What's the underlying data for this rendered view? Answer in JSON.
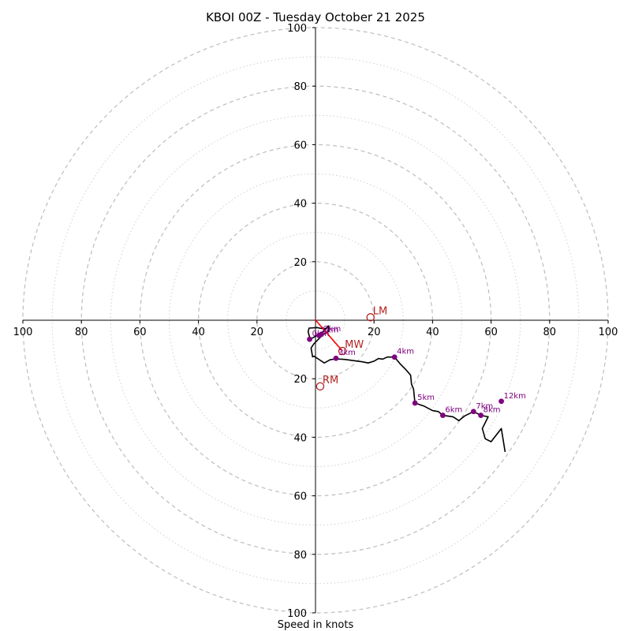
{
  "chart_data": {
    "type": "scatter",
    "subtype": "hodograph",
    "title": "KBOI 00Z - Tuesday October 21 2025",
    "xlabel": "Speed in knots",
    "units": "knots",
    "range": [
      -100,
      100
    ],
    "major_rings": [
      20,
      40,
      60,
      80,
      100
    ],
    "minor_rings": [
      10,
      30,
      50,
      70,
      90
    ],
    "x_ticks": [
      {
        "value": -100,
        "label": "100"
      },
      {
        "value": -80,
        "label": "80"
      },
      {
        "value": -60,
        "label": "60"
      },
      {
        "value": -40,
        "label": "40"
      },
      {
        "value": -20,
        "label": "20"
      },
      {
        "value": 20,
        "label": "20"
      },
      {
        "value": 40,
        "label": "40"
      },
      {
        "value": 60,
        "label": "60"
      },
      {
        "value": 80,
        "label": "80"
      },
      {
        "value": 100,
        "label": "100"
      }
    ],
    "y_ticks": [
      {
        "value": 100,
        "label": "100"
      },
      {
        "value": 80,
        "label": "80"
      },
      {
        "value": 60,
        "label": "60"
      },
      {
        "value": 40,
        "label": "40"
      },
      {
        "value": 20,
        "label": "20"
      },
      {
        "value": -20,
        "label": "20"
      },
      {
        "value": -40,
        "label": "40"
      },
      {
        "value": -60,
        "label": "60"
      },
      {
        "value": -80,
        "label": "80"
      },
      {
        "value": -100,
        "label": "100"
      }
    ],
    "hodograph_trace": [
      [
        4.5,
        -1.8
      ],
      [
        3.0,
        -3.5
      ],
      [
        2.0,
        -4.3
      ],
      [
        0.5,
        -5.2
      ],
      [
        -1.8,
        -6.5
      ],
      [
        -2.5,
        -4.0
      ],
      [
        -2.2,
        -2.7
      ],
      [
        0.5,
        -2.5
      ],
      [
        3.0,
        -3.0
      ],
      [
        4.5,
        -2.3
      ],
      [
        4.5,
        -3.8
      ],
      [
        2.5,
        -5.0
      ],
      [
        -0.5,
        -8.0
      ],
      [
        -1.5,
        -9.5
      ],
      [
        -1.0,
        -12.5
      ],
      [
        -0.5,
        -12.3
      ],
      [
        1.5,
        -13.6
      ],
      [
        3.0,
        -14.6
      ],
      [
        5.0,
        -13.5
      ],
      [
        7.0,
        -13.2
      ],
      [
        10.0,
        -13.4
      ],
      [
        13.0,
        -13.8
      ],
      [
        16.0,
        -14.2
      ],
      [
        18.0,
        -14.6
      ],
      [
        20.0,
        -14.0
      ],
      [
        21.5,
        -13.1
      ],
      [
        23.0,
        -13.3
      ],
      [
        24.5,
        -12.6
      ],
      [
        27.0,
        -12.6
      ],
      [
        29.0,
        -15.0
      ],
      [
        31.0,
        -17.0
      ],
      [
        32.5,
        -18.8
      ],
      [
        32.8,
        -21.8
      ],
      [
        33.5,
        -23.5
      ],
      [
        34.0,
        -28.3
      ],
      [
        37.0,
        -29.3
      ],
      [
        40.0,
        -30.9
      ],
      [
        42.0,
        -31.2
      ],
      [
        43.5,
        -32.5
      ],
      [
        47.0,
        -33.0
      ],
      [
        49.0,
        -34.3
      ],
      [
        51.0,
        -32.7
      ],
      [
        54.0,
        -31.2
      ],
      [
        56.5,
        -32.5
      ],
      [
        59.0,
        -33.0
      ],
      [
        58.0,
        -35.0
      ],
      [
        57.0,
        -37.0
      ],
      [
        58.0,
        -40.5
      ],
      [
        60.0,
        -41.5
      ],
      [
        63.5,
        -37.0
      ],
      [
        64.8,
        -45.0
      ]
    ],
    "height_markers": [
      {
        "label": "0km",
        "u": -2.0,
        "v": -6.5
      },
      {
        "label": "1km",
        "u": 1.2,
        "v": -5.2
      },
      {
        "label": "2km",
        "u": 2.0,
        "v": -4.8
      },
      {
        "label": "3km",
        "u": 7.0,
        "v": -13.0
      },
      {
        "label": "4km",
        "u": 27.0,
        "v": -12.6
      },
      {
        "label": "5km",
        "u": 34.0,
        "v": -28.3
      },
      {
        "label": "6km",
        "u": 43.5,
        "v": -32.5
      },
      {
        "label": "7km",
        "u": 54.0,
        "v": -31.2
      },
      {
        "label": "8km",
        "u": 56.5,
        "v": -32.5
      },
      {
        "label": "12km",
        "u": 63.5,
        "v": -27.7
      }
    ],
    "storm_motion": [
      {
        "label": "LM",
        "u": 18.8,
        "v": 1.0
      },
      {
        "label": "MW",
        "u": 9.2,
        "v": -10.5
      },
      {
        "label": "RM",
        "u": 1.6,
        "v": -22.6
      }
    ],
    "shear_vector": {
      "from": [
        -0.2,
        0.3
      ],
      "to": [
        9.2,
        -10.5
      ],
      "color": "#ff0000"
    },
    "colors": {
      "trace": "#000000",
      "markers": "#800080",
      "storm": "#b22222",
      "shear": "#ff0000",
      "rings": "#bdbdbd"
    }
  }
}
